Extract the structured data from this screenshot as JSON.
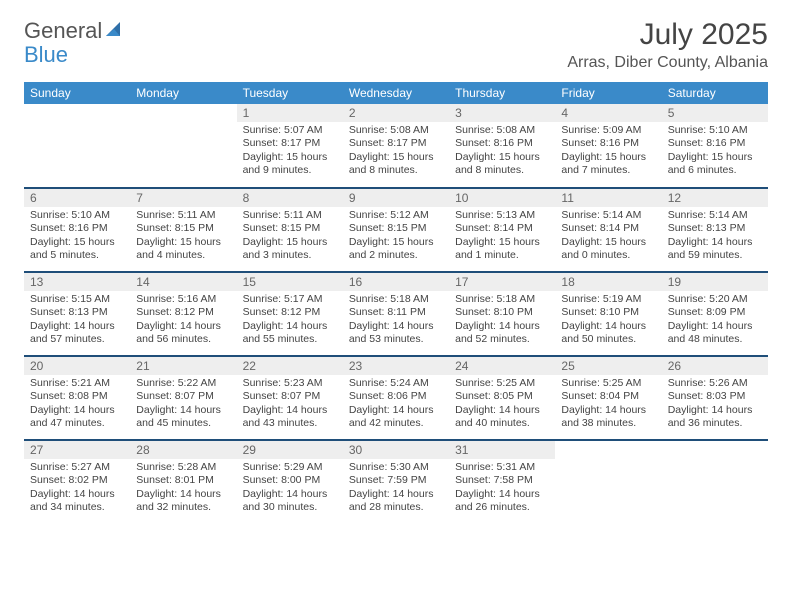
{
  "logo": {
    "text1": "General",
    "text2": "Blue"
  },
  "title": "July 2025",
  "location": "Arras, Diber County, Albania",
  "colors": {
    "header_bg": "#3a8ac9",
    "row_divider": "#1f4e79",
    "daynum_bg": "#eeeeee",
    "text": "#444444"
  },
  "weekdays": [
    "Sunday",
    "Monday",
    "Tuesday",
    "Wednesday",
    "Thursday",
    "Friday",
    "Saturday"
  ],
  "weeks": [
    [
      null,
      null,
      {
        "n": "1",
        "sr": "Sunrise: 5:07 AM",
        "ss": "Sunset: 8:17 PM",
        "dl1": "Daylight: 15 hours",
        "dl2": "and 9 minutes."
      },
      {
        "n": "2",
        "sr": "Sunrise: 5:08 AM",
        "ss": "Sunset: 8:17 PM",
        "dl1": "Daylight: 15 hours",
        "dl2": "and 8 minutes."
      },
      {
        "n": "3",
        "sr": "Sunrise: 5:08 AM",
        "ss": "Sunset: 8:16 PM",
        "dl1": "Daylight: 15 hours",
        "dl2": "and 8 minutes."
      },
      {
        "n": "4",
        "sr": "Sunrise: 5:09 AM",
        "ss": "Sunset: 8:16 PM",
        "dl1": "Daylight: 15 hours",
        "dl2": "and 7 minutes."
      },
      {
        "n": "5",
        "sr": "Sunrise: 5:10 AM",
        "ss": "Sunset: 8:16 PM",
        "dl1": "Daylight: 15 hours",
        "dl2": "and 6 minutes."
      }
    ],
    [
      {
        "n": "6",
        "sr": "Sunrise: 5:10 AM",
        "ss": "Sunset: 8:16 PM",
        "dl1": "Daylight: 15 hours",
        "dl2": "and 5 minutes."
      },
      {
        "n": "7",
        "sr": "Sunrise: 5:11 AM",
        "ss": "Sunset: 8:15 PM",
        "dl1": "Daylight: 15 hours",
        "dl2": "and 4 minutes."
      },
      {
        "n": "8",
        "sr": "Sunrise: 5:11 AM",
        "ss": "Sunset: 8:15 PM",
        "dl1": "Daylight: 15 hours",
        "dl2": "and 3 minutes."
      },
      {
        "n": "9",
        "sr": "Sunrise: 5:12 AM",
        "ss": "Sunset: 8:15 PM",
        "dl1": "Daylight: 15 hours",
        "dl2": "and 2 minutes."
      },
      {
        "n": "10",
        "sr": "Sunrise: 5:13 AM",
        "ss": "Sunset: 8:14 PM",
        "dl1": "Daylight: 15 hours",
        "dl2": "and 1 minute."
      },
      {
        "n": "11",
        "sr": "Sunrise: 5:14 AM",
        "ss": "Sunset: 8:14 PM",
        "dl1": "Daylight: 15 hours",
        "dl2": "and 0 minutes."
      },
      {
        "n": "12",
        "sr": "Sunrise: 5:14 AM",
        "ss": "Sunset: 8:13 PM",
        "dl1": "Daylight: 14 hours",
        "dl2": "and 59 minutes."
      }
    ],
    [
      {
        "n": "13",
        "sr": "Sunrise: 5:15 AM",
        "ss": "Sunset: 8:13 PM",
        "dl1": "Daylight: 14 hours",
        "dl2": "and 57 minutes."
      },
      {
        "n": "14",
        "sr": "Sunrise: 5:16 AM",
        "ss": "Sunset: 8:12 PM",
        "dl1": "Daylight: 14 hours",
        "dl2": "and 56 minutes."
      },
      {
        "n": "15",
        "sr": "Sunrise: 5:17 AM",
        "ss": "Sunset: 8:12 PM",
        "dl1": "Daylight: 14 hours",
        "dl2": "and 55 minutes."
      },
      {
        "n": "16",
        "sr": "Sunrise: 5:18 AM",
        "ss": "Sunset: 8:11 PM",
        "dl1": "Daylight: 14 hours",
        "dl2": "and 53 minutes."
      },
      {
        "n": "17",
        "sr": "Sunrise: 5:18 AM",
        "ss": "Sunset: 8:10 PM",
        "dl1": "Daylight: 14 hours",
        "dl2": "and 52 minutes."
      },
      {
        "n": "18",
        "sr": "Sunrise: 5:19 AM",
        "ss": "Sunset: 8:10 PM",
        "dl1": "Daylight: 14 hours",
        "dl2": "and 50 minutes."
      },
      {
        "n": "19",
        "sr": "Sunrise: 5:20 AM",
        "ss": "Sunset: 8:09 PM",
        "dl1": "Daylight: 14 hours",
        "dl2": "and 48 minutes."
      }
    ],
    [
      {
        "n": "20",
        "sr": "Sunrise: 5:21 AM",
        "ss": "Sunset: 8:08 PM",
        "dl1": "Daylight: 14 hours",
        "dl2": "and 47 minutes."
      },
      {
        "n": "21",
        "sr": "Sunrise: 5:22 AM",
        "ss": "Sunset: 8:07 PM",
        "dl1": "Daylight: 14 hours",
        "dl2": "and 45 minutes."
      },
      {
        "n": "22",
        "sr": "Sunrise: 5:23 AM",
        "ss": "Sunset: 8:07 PM",
        "dl1": "Daylight: 14 hours",
        "dl2": "and 43 minutes."
      },
      {
        "n": "23",
        "sr": "Sunrise: 5:24 AM",
        "ss": "Sunset: 8:06 PM",
        "dl1": "Daylight: 14 hours",
        "dl2": "and 42 minutes."
      },
      {
        "n": "24",
        "sr": "Sunrise: 5:25 AM",
        "ss": "Sunset: 8:05 PM",
        "dl1": "Daylight: 14 hours",
        "dl2": "and 40 minutes."
      },
      {
        "n": "25",
        "sr": "Sunrise: 5:25 AM",
        "ss": "Sunset: 8:04 PM",
        "dl1": "Daylight: 14 hours",
        "dl2": "and 38 minutes."
      },
      {
        "n": "26",
        "sr": "Sunrise: 5:26 AM",
        "ss": "Sunset: 8:03 PM",
        "dl1": "Daylight: 14 hours",
        "dl2": "and 36 minutes."
      }
    ],
    [
      {
        "n": "27",
        "sr": "Sunrise: 5:27 AM",
        "ss": "Sunset: 8:02 PM",
        "dl1": "Daylight: 14 hours",
        "dl2": "and 34 minutes."
      },
      {
        "n": "28",
        "sr": "Sunrise: 5:28 AM",
        "ss": "Sunset: 8:01 PM",
        "dl1": "Daylight: 14 hours",
        "dl2": "and 32 minutes."
      },
      {
        "n": "29",
        "sr": "Sunrise: 5:29 AM",
        "ss": "Sunset: 8:00 PM",
        "dl1": "Daylight: 14 hours",
        "dl2": "and 30 minutes."
      },
      {
        "n": "30",
        "sr": "Sunrise: 5:30 AM",
        "ss": "Sunset: 7:59 PM",
        "dl1": "Daylight: 14 hours",
        "dl2": "and 28 minutes."
      },
      {
        "n": "31",
        "sr": "Sunrise: 5:31 AM",
        "ss": "Sunset: 7:58 PM",
        "dl1": "Daylight: 14 hours",
        "dl2": "and 26 minutes."
      },
      null,
      null
    ]
  ]
}
